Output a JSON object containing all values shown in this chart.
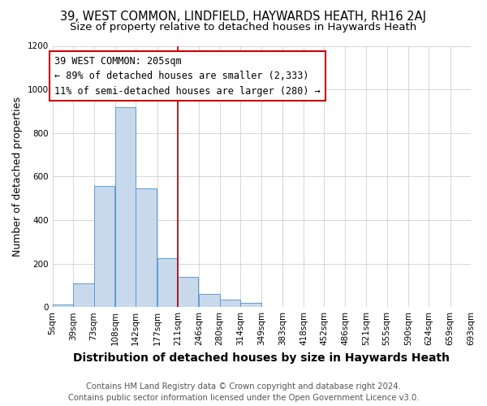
{
  "title": "39, WEST COMMON, LINDFIELD, HAYWARDS HEATH, RH16 2AJ",
  "subtitle": "Size of property relative to detached houses in Haywards Heath",
  "xlabel": "Distribution of detached houses by size in Haywards Heath",
  "ylabel": "Number of detached properties",
  "footer_lines": [
    "Contains HM Land Registry data © Crown copyright and database right 2024.",
    "Contains public sector information licensed under the Open Government Licence v3.0."
  ],
  "bin_edges": [
    5,
    39,
    73,
    108,
    142,
    177,
    211,
    246,
    280,
    314,
    349,
    383,
    418,
    452,
    486,
    521,
    555,
    590,
    624,
    659,
    693
  ],
  "bar_heights": [
    10,
    110,
    555,
    920,
    545,
    225,
    140,
    60,
    35,
    20,
    0,
    0,
    0,
    0,
    0,
    0,
    0,
    0,
    0,
    0
  ],
  "tick_labels": [
    "5sqm",
    "39sqm",
    "73sqm",
    "108sqm",
    "142sqm",
    "177sqm",
    "211sqm",
    "246sqm",
    "280sqm",
    "314sqm",
    "349sqm",
    "383sqm",
    "418sqm",
    "452sqm",
    "486sqm",
    "521sqm",
    "555sqm",
    "590sqm",
    "624sqm",
    "659sqm",
    "693sqm"
  ],
  "bar_color": "#c9d9ec",
  "bar_edge_color": "#5b9bd5",
  "vline_x": 211,
  "vline_color": "#aa0000",
  "annotation_title": "39 WEST COMMON: 205sqm",
  "annotation_line1": "← 89% of detached houses are smaller (2,333)",
  "annotation_line2": "11% of semi-detached houses are larger (280) →",
  "annotation_box_color": "#ffffff",
  "annotation_box_edge": "#cc0000",
  "ylim": [
    0,
    1200
  ],
  "yticks": [
    0,
    200,
    400,
    600,
    800,
    1000,
    1200
  ],
  "background_color": "#ffffff",
  "grid_color": "#d0d0d0",
  "title_fontsize": 10.5,
  "subtitle_fontsize": 9.5,
  "xlabel_fontsize": 10,
  "ylabel_fontsize": 9,
  "tick_fontsize": 7.5,
  "footer_fontsize": 7.2,
  "ann_fontsize": 8.5
}
